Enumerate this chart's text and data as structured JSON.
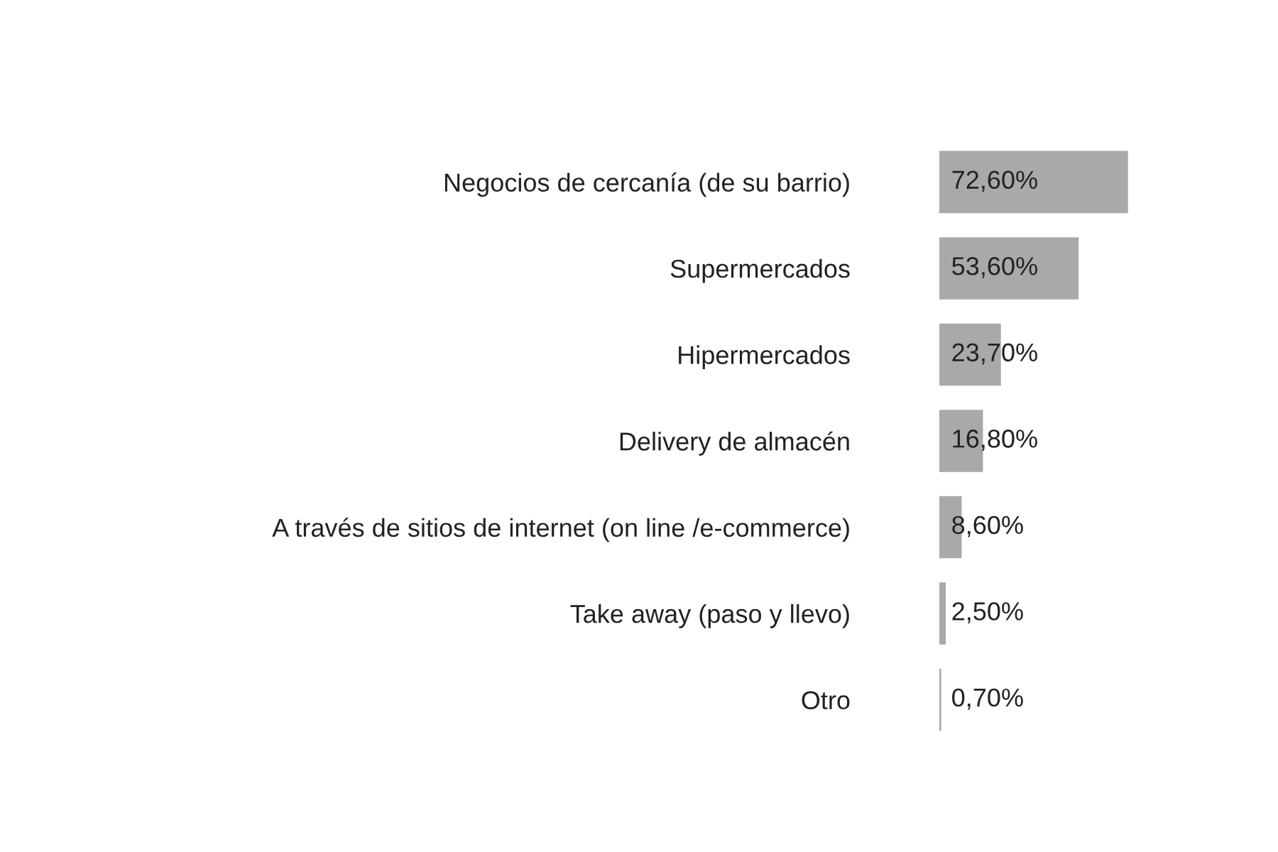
{
  "chart_data": {
    "type": "bar",
    "orientation": "horizontal",
    "categories": [
      "Negocios de cercanía (de su barrio)",
      "Supermercados",
      "Hipermercados",
      "Delivery de almacén",
      "A través de sitios de internet (on line /e-commerce)",
      "Take away (paso y llevo)",
      "Otro"
    ],
    "values": [
      72.6,
      53.6,
      23.7,
      16.8,
      8.6,
      2.5,
      0.7
    ],
    "value_labels": [
      "72,60%",
      "53,60%",
      "23,70%",
      "16,80%",
      "8,60%",
      "2,50%",
      "0,70%"
    ],
    "color": "#a9a9a9",
    "grid": false,
    "legend": false
  }
}
